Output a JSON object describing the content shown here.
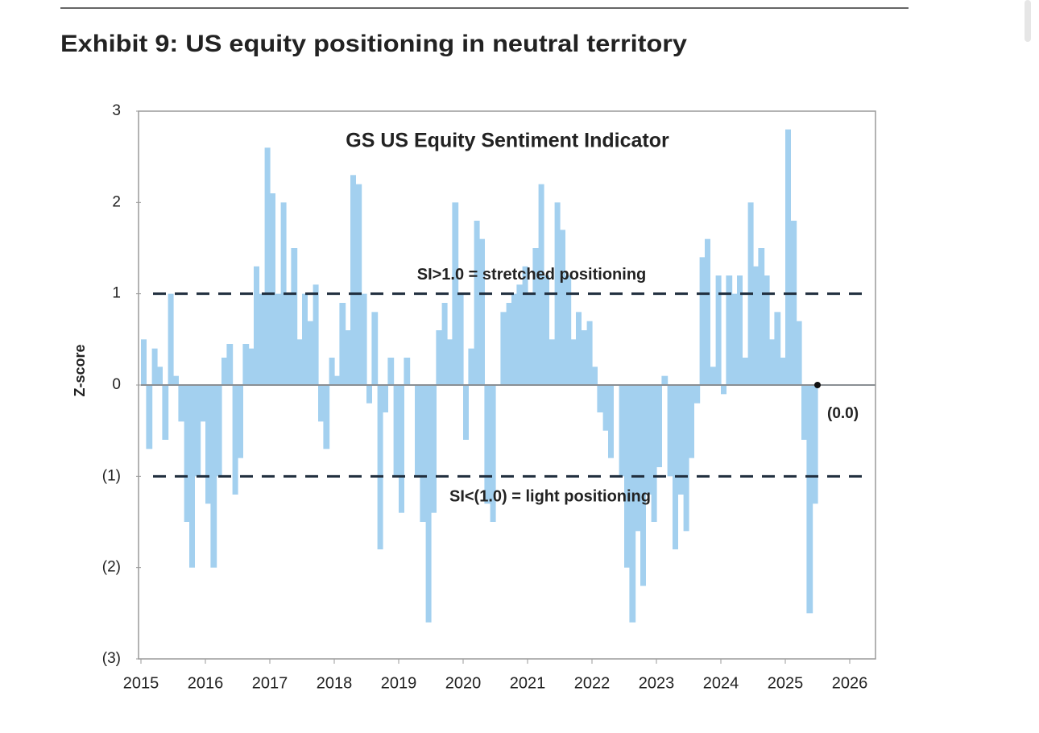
{
  "header": {
    "title": "Exhibit 9: US equity positioning in neutral territory"
  },
  "chart_data": {
    "type": "bar",
    "title": "GS US Equity Sentiment Indicator",
    "y_label": "Z-score",
    "color": "#a3d0ef",
    "x": [
      2015,
      2015.08,
      2015.17,
      2015.25,
      2015.33,
      2015.42,
      2015.5,
      2015.58,
      2015.67,
      2015.75,
      2015.83,
      2015.92,
      2016,
      2016.08,
      2016.17,
      2016.25,
      2016.33,
      2016.42,
      2016.5,
      2016.58,
      2016.67,
      2016.75,
      2016.83,
      2016.92,
      2017,
      2017.08,
      2017.17,
      2017.25,
      2017.33,
      2017.42,
      2017.5,
      2017.58,
      2017.67,
      2017.75,
      2017.83,
      2017.92,
      2018,
      2018.08,
      2018.17,
      2018.25,
      2018.33,
      2018.42,
      2018.5,
      2018.58,
      2018.67,
      2018.75,
      2018.83,
      2018.92,
      2019,
      2019.08,
      2019.17,
      2019.25,
      2019.33,
      2019.42,
      2019.5,
      2019.58,
      2019.67,
      2019.75,
      2019.83,
      2019.92,
      2020,
      2020.08,
      2020.17,
      2020.25,
      2020.33,
      2020.42,
      2020.5,
      2020.58,
      2020.67,
      2020.75,
      2020.83,
      2020.92,
      2021,
      2021.08,
      2021.17,
      2021.25,
      2021.33,
      2021.42,
      2021.5,
      2021.58,
      2021.67,
      2021.75,
      2021.83,
      2021.92,
      2022,
      2022.08,
      2022.17,
      2022.25,
      2022.33,
      2022.42,
      2022.5,
      2022.58,
      2022.67,
      2022.75,
      2022.83,
      2022.92,
      2023,
      2023.08,
      2023.17,
      2023.25,
      2023.33,
      2023.42,
      2023.5,
      2023.58,
      2023.67,
      2023.75,
      2023.83,
      2023.92,
      2024,
      2024.08,
      2024.17,
      2024.25,
      2024.33,
      2024.42,
      2024.5,
      2024.58,
      2024.67,
      2024.75,
      2024.83,
      2024.92,
      2025,
      2025.08,
      2025.17,
      2025.25,
      2025.33,
      2025.42
    ],
    "values": [
      0.5,
      -0.7,
      0.4,
      0.2,
      -0.6,
      1.0,
      0.1,
      -0.4,
      -1.5,
      -2.0,
      -1.0,
      -0.4,
      -1.3,
      -2.0,
      -1.0,
      0.3,
      0.45,
      -1.2,
      -0.8,
      0.45,
      0.4,
      1.3,
      1.0,
      2.6,
      2.1,
      1.0,
      2.0,
      1.0,
      1.5,
      0.5,
      1.0,
      0.7,
      1.1,
      -0.4,
      -0.7,
      0.3,
      0.1,
      0.9,
      0.6,
      2.3,
      2.2,
      1.0,
      -0.2,
      0.8,
      -1.8,
      -0.3,
      0.3,
      -1.0,
      -1.4,
      0.3,
      0.0,
      -1.0,
      -1.5,
      -2.6,
      -1.4,
      0.6,
      0.9,
      0.5,
      2.0,
      1.0,
      -0.6,
      0.4,
      1.8,
      1.6,
      -1.3,
      -1.5,
      0.0,
      0.8,
      0.9,
      1.0,
      1.1,
      1.3,
      1.0,
      1.5,
      2.2,
      1.2,
      0.5,
      2.0,
      1.7,
      1.2,
      0.5,
      0.8,
      0.6,
      0.7,
      0.2,
      -0.3,
      -0.5,
      -0.8,
      0.0,
      -1.0,
      -2.0,
      -2.6,
      -1.6,
      -2.2,
      -1.2,
      -1.5,
      -0.9,
      0.1,
      -1.0,
      -1.8,
      -1.2,
      -1.6,
      -0.8,
      -0.2,
      1.4,
      1.6,
      0.2,
      1.2,
      -0.1,
      1.2,
      1.0,
      1.2,
      0.3,
      2.0,
      1.3,
      1.5,
      1.2,
      0.5,
      0.8,
      0.3,
      2.8,
      1.8,
      0.7,
      -0.6,
      -2.5,
      -1.3
    ],
    "last_point": {
      "x": 2025.5,
      "value": 0,
      "label": "(0.0)"
    },
    "thresholds": [
      {
        "value": 1,
        "label": "SI>1.0 = stretched positioning"
      },
      {
        "value": -1,
        "label": "SI<(1.0) = light positioning"
      }
    ],
    "xlim": [
      2015,
      2026.4
    ],
    "xticks": [
      2015,
      2016,
      2017,
      2018,
      2019,
      2020,
      2021,
      2022,
      2023,
      2024,
      2025,
      2026
    ],
    "ylim": [
      -3,
      3
    ],
    "yticks": [
      {
        "value": -3,
        "label": "(3)"
      },
      {
        "value": -2,
        "label": "(2)"
      },
      {
        "value": -1,
        "label": "(1)"
      },
      0,
      1,
      2,
      3
    ]
  }
}
